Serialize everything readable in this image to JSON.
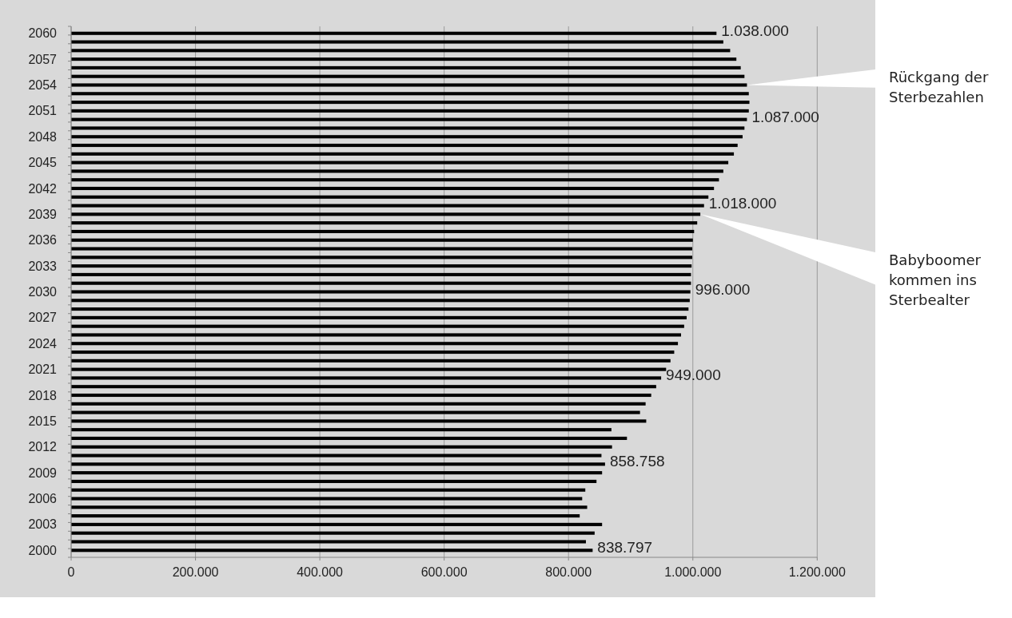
{
  "chart_data": {
    "type": "bar",
    "orientation": "horizontal",
    "categories": [
      "2060",
      null,
      null,
      "2057",
      null,
      null,
      "2054",
      null,
      null,
      "2051",
      null,
      null,
      "2048",
      null,
      null,
      "2045",
      null,
      null,
      "2042",
      null,
      null,
      "2039",
      null,
      null,
      "2036",
      null,
      null,
      "2033",
      null,
      null,
      "2030",
      null,
      null,
      "2027",
      null,
      null,
      "2024",
      null,
      null,
      "2021",
      null,
      null,
      "2018",
      null,
      null,
      "2015",
      null,
      null,
      "2012",
      null,
      null,
      "2009",
      null,
      null,
      "2006",
      null,
      null,
      "2003",
      null,
      null,
      "2000"
    ],
    "values": [
      1038000,
      1049000,
      1060000,
      1070000,
      1077000,
      1083000,
      1087000,
      1090000,
      1091000,
      1090000,
      1087000,
      1083000,
      1080000,
      1072000,
      1066000,
      1057000,
      1049000,
      1042000,
      1034000,
      1025000,
      1018000,
      1012000,
      1007000,
      1002000,
      1000000,
      999000,
      999000,
      998000,
      997000,
      997000,
      996000,
      995000,
      993000,
      990000,
      986000,
      981000,
      976000,
      970000,
      964000,
      957000,
      949000,
      941000,
      933000,
      924000,
      915000,
      925000,
      869000,
      894000,
      870000,
      853000,
      858758,
      854000,
      845000,
      827000,
      822000,
      830000,
      818000,
      854000,
      842000,
      828000,
      838797
    ],
    "value_labels": [
      "1.038.000",
      null,
      null,
      null,
      null,
      null,
      null,
      null,
      null,
      null,
      "1.087.000",
      null,
      null,
      null,
      null,
      null,
      null,
      null,
      null,
      null,
      "1.018.000",
      null,
      null,
      null,
      null,
      null,
      null,
      null,
      null,
      null,
      "996.000",
      null,
      null,
      null,
      null,
      null,
      null,
      null,
      null,
      null,
      "949.000",
      null,
      null,
      null,
      null,
      null,
      null,
      null,
      null,
      null,
      "858.758",
      null,
      null,
      null,
      null,
      null,
      null,
      null,
      null,
      null,
      "838.797"
    ],
    "color": "#000000",
    "xlim": [
      0,
      1200000
    ],
    "xticks": [
      0,
      {
        "value": 200000,
        "label": "200.000"
      },
      {
        "value": 400000,
        "label": "400.000"
      },
      {
        "value": 600000,
        "label": "600.000"
      },
      {
        "value": 800000,
        "label": "800.000"
      },
      {
        "value": 1000000,
        "label": "1.000.000"
      },
      {
        "value": 1200000,
        "label": "1.200.000"
      }
    ],
    "grid": "x",
    "annotations": [
      {
        "text": "Rückgang der\nSterbezahlen",
        "x": 1087000,
        "y": "2054"
      },
      {
        "text": "Babyboomer\nkommen ins\nSterbealter",
        "x": 1012000,
        "y": "2039"
      }
    ]
  }
}
